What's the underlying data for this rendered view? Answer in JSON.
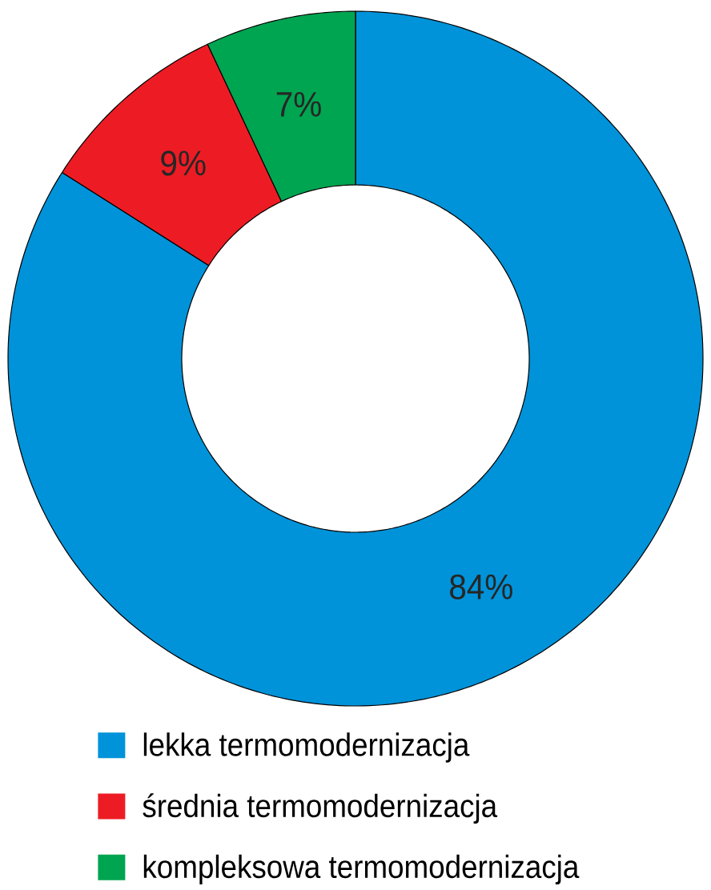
{
  "chart_data": {
    "type": "donut",
    "categories": [
      "lekka termomodernizacja",
      "średnia termomodernizacja",
      "kompleksowa termomodernizacja"
    ],
    "values": [
      84,
      9,
      7
    ],
    "colors": [
      "#0093d9",
      "#ed1c24",
      "#00a551"
    ],
    "value_labels": [
      "84%",
      "9%",
      "7%"
    ],
    "legend": "bottom"
  }
}
